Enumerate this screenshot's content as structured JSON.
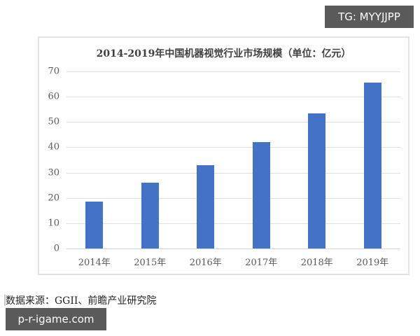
{
  "watermarks": {
    "top_right": "TG: MYYJJPP",
    "bottom_left": "p-r-igame.com"
  },
  "source_note": "数据来源：GGII、前瞻产业研究院",
  "chart_data": {
    "type": "bar",
    "title": "2014-2019年中国机器视觉行业市场规模（单位：亿元）",
    "xlabel": "",
    "ylabel": "",
    "categories": [
      "2014年",
      "2015年",
      "2016年",
      "2017年",
      "2018年",
      "2019年"
    ],
    "values": [
      18.5,
      26,
      33,
      42,
      53.5,
      65.5
    ],
    "ylim": [
      0,
      70
    ],
    "yticks": [
      "0",
      "10",
      "20",
      "30",
      "40",
      "50",
      "60",
      "70"
    ],
    "grid": true,
    "legend": "none",
    "bar_color": "#4472c4"
  }
}
